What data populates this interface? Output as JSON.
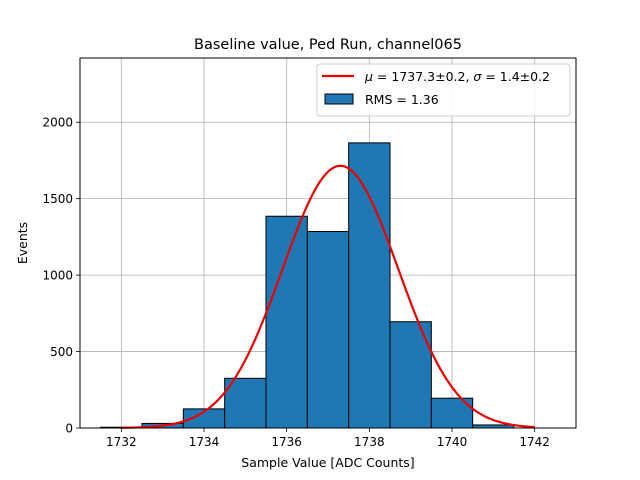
{
  "chart_data": {
    "type": "bar",
    "title": "Baseline value, Ped Run, channel065",
    "xlabel": "Sample Value [ADC Counts]",
    "ylabel": "Events",
    "xlim": [
      1731.0,
      1743.0
    ],
    "ylim": [
      0,
      2420
    ],
    "xticks": [
      1732,
      1734,
      1736,
      1738,
      1740,
      1742
    ],
    "yticks": [
      0,
      500,
      1000,
      1500,
      2000
    ],
    "grid": true,
    "legend_position": "top-right",
    "histogram": {
      "name": "RMS = 1.36",
      "color": "#1f77b4",
      "bins": [
        {
          "x0": 1731.5,
          "x1": 1732.5,
          "count": 5
        },
        {
          "x0": 1732.5,
          "x1": 1733.5,
          "count": 30
        },
        {
          "x0": 1733.5,
          "x1": 1734.5,
          "count": 125
        },
        {
          "x0": 1734.5,
          "x1": 1735.5,
          "count": 325
        },
        {
          "x0": 1735.5,
          "x1": 1736.5,
          "count": 1385
        },
        {
          "x0": 1736.5,
          "x1": 1737.5,
          "count": 1285
        },
        {
          "x0": 1737.5,
          "x1": 1738.5,
          "count": 1865
        },
        {
          "x0": 1738.5,
          "x1": 1739.5,
          "count": 695
        },
        {
          "x0": 1739.5,
          "x1": 1740.5,
          "count": 195
        },
        {
          "x0": 1740.5,
          "x1": 1741.5,
          "count": 20
        }
      ]
    },
    "fit": {
      "color": "#ee0000",
      "mu": 1737.3,
      "sigma": 1.4,
      "amplitude": 1715,
      "x_range": [
        1732.0,
        1742.0
      ]
    },
    "legend": [
      {
        "kind": "line",
        "label_prefix": "μ",
        "label_mid1": " = 1737.3±0.2, ",
        "label_sigma": "σ",
        "label_mid2": " = 1.4±0.2"
      },
      {
        "kind": "patch",
        "label": "RMS = 1.36"
      }
    ]
  }
}
